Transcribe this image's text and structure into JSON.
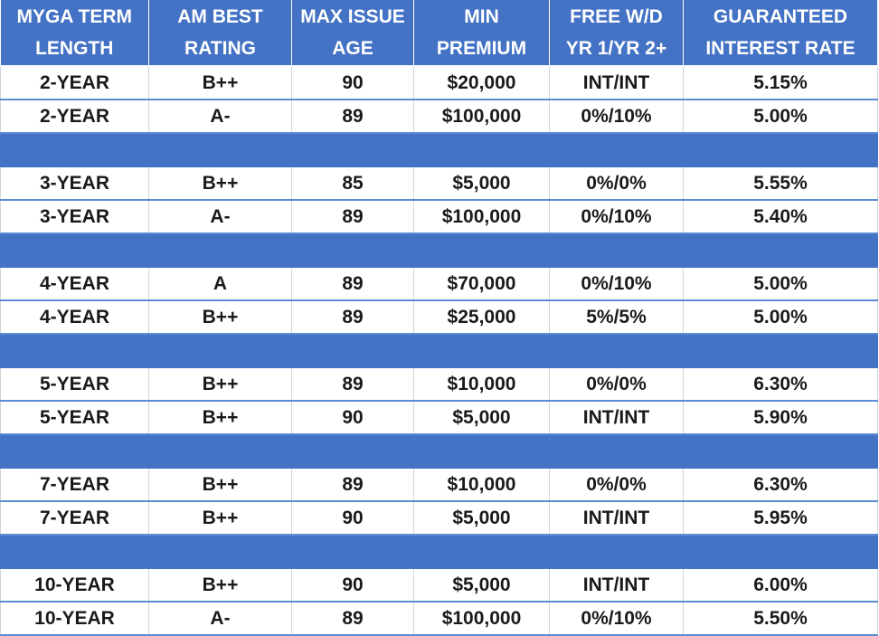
{
  "table": {
    "headers": [
      [
        "MYGA TERM",
        "LENGTH"
      ],
      [
        "AM BEST",
        "RATING"
      ],
      [
        "MAX ISSUE",
        "AGE"
      ],
      [
        "MIN",
        "PREMIUM"
      ],
      [
        "FREE W/D",
        "YR 1/YR 2+"
      ],
      [
        "GUARANTEED",
        "INTEREST RATE"
      ]
    ],
    "groups": [
      [
        [
          "2-YEAR",
          "B++",
          "90",
          "$20,000",
          "INT/INT",
          "5.15%"
        ],
        [
          "2-YEAR",
          "A-",
          "89",
          "$100,000",
          "0%/10%",
          "5.00%"
        ]
      ],
      [
        [
          "3-YEAR",
          "B++",
          "85",
          "$5,000",
          "0%/0%",
          "5.55%"
        ],
        [
          "3-YEAR",
          "A-",
          "89",
          "$100,000",
          "0%/10%",
          "5.40%"
        ]
      ],
      [
        [
          "4-YEAR",
          "A",
          "89",
          "$70,000",
          "0%/10%",
          "5.00%"
        ],
        [
          "4-YEAR",
          "B++",
          "89",
          "$25,000",
          "5%/5%",
          "5.00%"
        ]
      ],
      [
        [
          "5-YEAR",
          "B++",
          "89",
          "$10,000",
          "0%/0%",
          "6.30%"
        ],
        [
          "5-YEAR",
          "B++",
          "90",
          "$5,000",
          "INT/INT",
          "5.90%"
        ]
      ],
      [
        [
          "7-YEAR",
          "B++",
          "89",
          "$10,000",
          "0%/0%",
          "6.30%"
        ],
        [
          "7-YEAR",
          "B++",
          "90",
          "$5,000",
          "INT/INT",
          "5.95%"
        ]
      ],
      [
        [
          "10-YEAR",
          "B++",
          "90",
          "$5,000",
          "INT/INT",
          "6.00%"
        ],
        [
          "10-YEAR",
          "A-",
          "89",
          "$100,000",
          "0%/10%",
          "5.50%"
        ]
      ]
    ]
  }
}
